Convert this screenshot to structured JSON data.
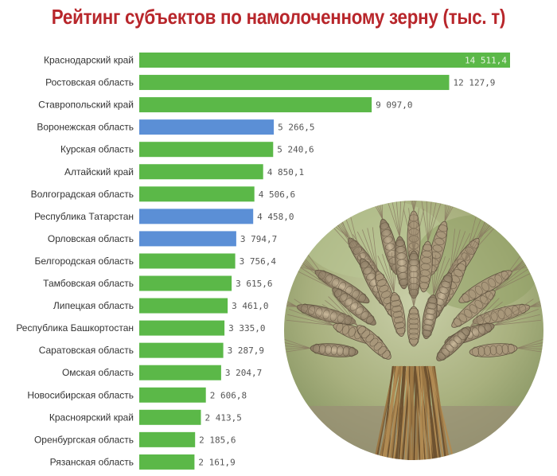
{
  "title": "Рейтинг субъектов по намолоченному зерну (тыс. т)",
  "colors": {
    "title": "#b8262b",
    "bar_default": "#5bb848",
    "bar_highlight": "#5b8fd6"
  },
  "photo": {
    "icon": "wheat-sheaf-photo"
  },
  "chart_data": {
    "type": "bar",
    "orientation": "horizontal",
    "title": "Рейтинг субъектов по намолоченному зерну (тыс. т)",
    "xlabel": "",
    "ylabel": "",
    "xlim": [
      0,
      14511.4
    ],
    "grid": false,
    "legend": "none",
    "categories": [
      "Краснодарский край",
      "Ростовская область",
      "Ставропольский край",
      "Воронежская область",
      "Курская область",
      "Алтайский край",
      "Волгоградская область",
      "Республика Татарстан",
      "Орловская область",
      "Белгородская область",
      "Тамбовская область",
      "Липецкая область",
      "Республика Башкортостан",
      "Саратовская область",
      "Омская область",
      "Новосибирская область",
      "Красноярский край",
      "Оренбургская область",
      "Рязанская область"
    ],
    "values": [
      14511.4,
      12127.9,
      9097.0,
      5266.5,
      5240.6,
      4850.1,
      4506.6,
      4458.0,
      3794.7,
      3756.4,
      3615.6,
      3461.0,
      3335.0,
      3287.9,
      3204.7,
      2606.8,
      2413.5,
      2185.6,
      2161.9
    ],
    "value_labels": [
      "14 511,4",
      "12 127,9",
      "9 097,0",
      "5 266,5",
      "5 240,6",
      "4 850,1",
      "4 506,6",
      "4 458,0",
      "3 794,7",
      "3 756,4",
      "3 615,6",
      "3 461,0",
      "3 335,0",
      "3 287,9",
      "3 204,7",
      "2 606,8",
      "2 413,5",
      "2 185,6",
      "2 161,9"
    ],
    "highlighted": [
      false,
      false,
      false,
      true,
      false,
      false,
      false,
      true,
      true,
      false,
      false,
      false,
      false,
      false,
      false,
      false,
      false,
      false,
      false
    ]
  }
}
